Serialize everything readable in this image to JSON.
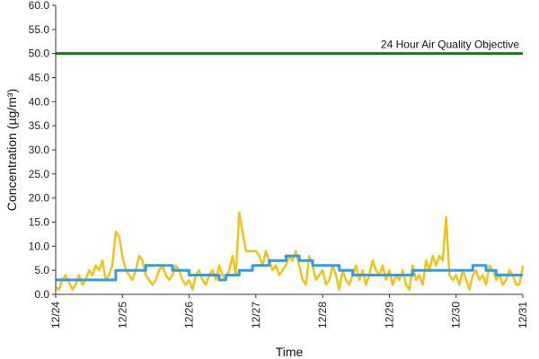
{
  "chart_data": {
    "type": "line",
    "xlabel": "Time",
    "ylabel": "Concentration (µg/m³)",
    "ylim": [
      0,
      60
    ],
    "y_ticks": [
      "0.0",
      "5.0",
      "10.0",
      "15.0",
      "20.0",
      "25.0",
      "30.0",
      "35.0",
      "40.0",
      "45.0",
      "50.0",
      "55.0",
      "60.0"
    ],
    "x_tick_labels": [
      "12/24",
      "12/25",
      "12/26",
      "12/27",
      "12/28",
      "12/29",
      "12/30",
      "12/31"
    ],
    "xlim": [
      0,
      7
    ],
    "grid": false,
    "legend": "none",
    "annotation": {
      "text": "24 Hour Air Quality Objective",
      "value": 50
    },
    "series": [
      {
        "color": "#f2c314",
        "x": [
          0,
          0.05,
          0.1,
          0.15,
          0.2,
          0.25,
          0.3,
          0.35,
          0.4,
          0.45,
          0.5,
          0.55,
          0.6,
          0.65,
          0.7,
          0.75,
          0.8,
          0.85,
          0.9,
          0.95,
          1.0,
          1.05,
          1.1,
          1.15,
          1.2,
          1.25,
          1.3,
          1.35,
          1.4,
          1.45,
          1.5,
          1.55,
          1.6,
          1.65,
          1.7,
          1.75,
          1.8,
          1.85,
          1.9,
          1.95,
          2.0,
          2.05,
          2.1,
          2.15,
          2.2,
          2.25,
          2.3,
          2.35,
          2.4,
          2.45,
          2.5,
          2.55,
          2.6,
          2.65,
          2.7,
          2.75,
          2.8,
          2.85,
          2.9,
          2.95,
          3.0,
          3.05,
          3.1,
          3.15,
          3.2,
          3.25,
          3.3,
          3.35,
          3.4,
          3.45,
          3.5,
          3.55,
          3.6,
          3.65,
          3.7,
          3.75,
          3.8,
          3.85,
          3.9,
          3.95,
          4.0,
          4.05,
          4.1,
          4.15,
          4.2,
          4.25,
          4.3,
          4.35,
          4.4,
          4.45,
          4.5,
          4.55,
          4.6,
          4.65,
          4.7,
          4.75,
          4.8,
          4.85,
          4.9,
          4.95,
          5.0,
          5.05,
          5.1,
          5.15,
          5.2,
          5.25,
          5.3,
          5.35,
          5.4,
          5.45,
          5.5,
          5.55,
          5.6,
          5.65,
          5.7,
          5.75,
          5.8,
          5.85,
          5.9,
          5.95,
          6.0,
          6.05,
          6.1,
          6.15,
          6.2,
          6.25,
          6.3,
          6.35,
          6.4,
          6.45,
          6.5,
          6.55,
          6.6,
          6.65,
          6.7,
          6.75,
          6.8,
          6.85,
          6.9,
          6.95,
          7.0
        ],
        "values": [
          1.5,
          1,
          3,
          4,
          2.5,
          1,
          2,
          4,
          2,
          3,
          5,
          4,
          6,
          5,
          7,
          3,
          4,
          6,
          13,
          12,
          8,
          5,
          4,
          3,
          5,
          8,
          7,
          4,
          3,
          2,
          3,
          5,
          6,
          4,
          3,
          4,
          6,
          5,
          3,
          2,
          3,
          1,
          4,
          5,
          3,
          2,
          4,
          5,
          3,
          6,
          4,
          3,
          5,
          8,
          4,
          17,
          13,
          9,
          9,
          9,
          9,
          8,
          6,
          9,
          7,
          5,
          6,
          4,
          5,
          6,
          8,
          7,
          9,
          6,
          3,
          2,
          8,
          6,
          3,
          4,
          5,
          2,
          3,
          6,
          4,
          1,
          5,
          3,
          2,
          4,
          6,
          3,
          5,
          2,
          4,
          7,
          5,
          4,
          6,
          3,
          5,
          2,
          4,
          3,
          5,
          2,
          1,
          6,
          3,
          4,
          2,
          7,
          5,
          8,
          6,
          8,
          7,
          16,
          4,
          3,
          4,
          2,
          5,
          3,
          1,
          4,
          5,
          3,
          4,
          2,
          6,
          5,
          3,
          4,
          2,
          3,
          5,
          4,
          2,
          2,
          6
        ]
      },
      {
        "color": "#2e9ee8",
        "x": [
          0,
          0.9,
          0.9,
          1.35,
          1.35,
          1.75,
          1.75,
          2.0,
          2.0,
          2.4,
          2.4,
          2.45,
          2.45,
          2.55,
          2.55,
          2.75,
          2.75,
          2.95,
          2.95,
          3.05,
          3.05,
          3.2,
          3.2,
          3.45,
          3.45,
          3.65,
          3.65,
          3.85,
          3.85,
          4.25,
          4.25,
          4.45,
          4.45,
          5.15,
          5.15,
          5.35,
          5.35,
          6.25,
          6.25,
          6.45,
          6.45,
          6.6,
          6.6,
          7.0
        ],
        "values": [
          3,
          3,
          5,
          5,
          6,
          6,
          5,
          5,
          4,
          4,
          4,
          4,
          3,
          3,
          4,
          4,
          5,
          5,
          6,
          6,
          6,
          6,
          7,
          7,
          8,
          8,
          7,
          7,
          6,
          6,
          5,
          5,
          4,
          4,
          4,
          4,
          5,
          5,
          6,
          6,
          5,
          5,
          4,
          4
        ]
      }
    ],
    "reference_line": {
      "color": "#1a7a1a",
      "value": 50
    }
  }
}
